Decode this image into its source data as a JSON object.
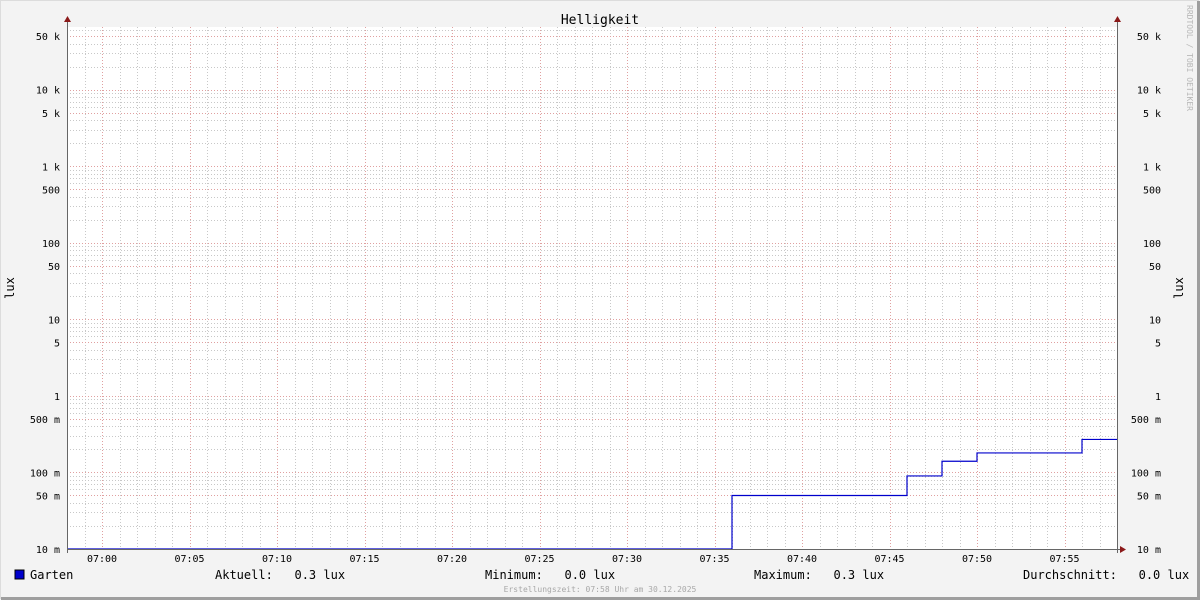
{
  "chart_data": {
    "type": "line",
    "title": "Helligkeit",
    "ylabel": "lux",
    "ylabel_right": "lux",
    "yscale": "log",
    "ylim": [
      0.01,
      66000
    ],
    "xlim": [
      "06:58",
      "07:58"
    ],
    "grid": true,
    "y_ticks": [
      {
        "value": 50000,
        "label": "50 k"
      },
      {
        "value": 10000,
        "label": "10 k"
      },
      {
        "value": 5000,
        "label": "5 k"
      },
      {
        "value": 1000,
        "label": "1 k"
      },
      {
        "value": 500,
        "label": "500"
      },
      {
        "value": 100,
        "label": "100"
      },
      {
        "value": 50,
        "label": "50"
      },
      {
        "value": 10,
        "label": "10"
      },
      {
        "value": 5,
        "label": "5"
      },
      {
        "value": 1,
        "label": "1"
      },
      {
        "value": 0.5,
        "label": "500 m"
      },
      {
        "value": 0.1,
        "label": "100 m"
      },
      {
        "value": 0.05,
        "label": "50 m"
      },
      {
        "value": 0.01,
        "label": "10 m"
      }
    ],
    "x_ticks": [
      "07:00",
      "07:05",
      "07:10",
      "07:15",
      "07:20",
      "07:25",
      "07:30",
      "07:35",
      "07:40",
      "07:45",
      "07:50",
      "07:55"
    ],
    "series": [
      {
        "name": "Garten",
        "color": "#0000cc",
        "step": true,
        "points": [
          {
            "x": "06:58",
            "y": 0.01
          },
          {
            "x": "07:36",
            "y": 0.05
          },
          {
            "x": "07:46",
            "y": 0.09
          },
          {
            "x": "07:48",
            "y": 0.14
          },
          {
            "x": "07:50",
            "y": 0.18
          },
          {
            "x": "07:56",
            "y": 0.27
          },
          {
            "x": "07:58",
            "y": 0.27
          }
        ]
      }
    ]
  },
  "legend": {
    "series_name": "Garten",
    "swatch_color": "#0000cc",
    "current": "Aktuell:   0.3 lux",
    "minimum": "Minimum:   0.0 lux",
    "maximum": "Maximum:   0.3 lux",
    "average": "Durchschnitt:   0.0 lux"
  },
  "footer": "Erstellungszeit: 07:58 Uhr am 30.12.2025",
  "watermark": "RRDTOOL / TOBI OETIKER",
  "colors": {
    "background": "#f3f3f3",
    "canvas": "#ffffff",
    "major_grid": "#e0a0a0",
    "minor_grid": "#c8c8c8",
    "axis": "#666666",
    "arrow": "#8b1a1a"
  }
}
